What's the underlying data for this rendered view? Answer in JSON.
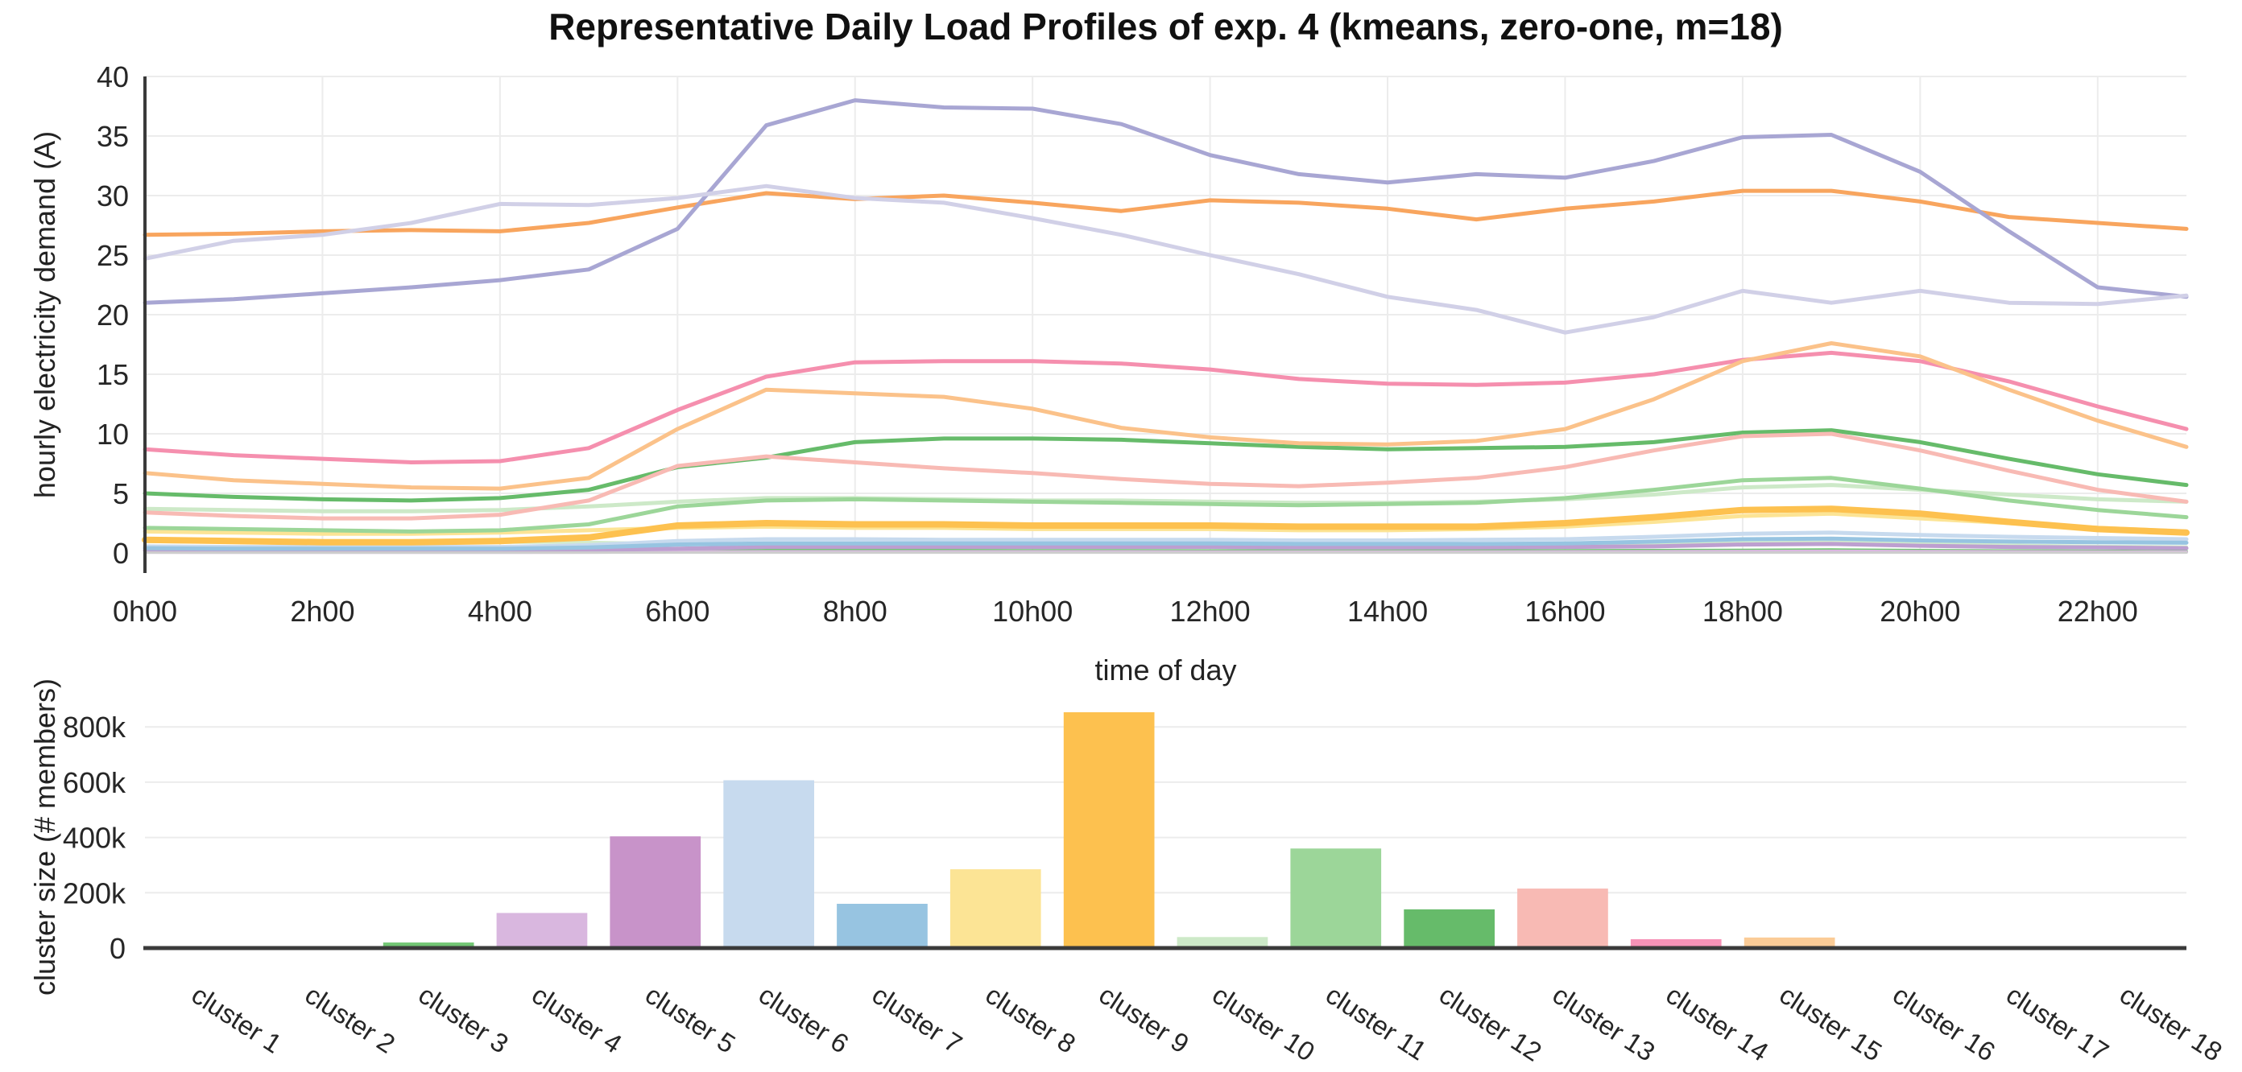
{
  "title": "Representative Daily Load Profiles of exp. 4 (kmeans, zero-one, m=18)",
  "chart_data": [
    {
      "type": "line",
      "xlabel": "time of day",
      "ylabel": "hourly electricity demand (A)",
      "x_hours": [
        0,
        1,
        2,
        3,
        4,
        5,
        6,
        7,
        8,
        9,
        10,
        11,
        12,
        13,
        14,
        15,
        16,
        17,
        18,
        19,
        20,
        21,
        22,
        23
      ],
      "xtick_hours": [
        0,
        2,
        4,
        6,
        8,
        10,
        12,
        14,
        16,
        18,
        20,
        22
      ],
      "xtick_labels": [
        "0h00",
        "2h00",
        "4h00",
        "6h00",
        "8h00",
        "10h00",
        "12h00",
        "14h00",
        "16h00",
        "18h00",
        "20h00",
        "22h00"
      ],
      "ytick_values": [
        0,
        5,
        10,
        15,
        20,
        25,
        30,
        35,
        40
      ],
      "ytick_labels": [
        "0",
        "5",
        "10",
        "15",
        "20",
        "25",
        "30",
        "35",
        "40"
      ],
      "ylim": [
        0,
        40
      ],
      "grid": true,
      "legend": "none",
      "series": [
        {
          "name": "cluster 1",
          "color": "#d2ebcd",
          "width": 4,
          "values": [
            0.95,
            0.9,
            0.9,
            0.85,
            0.9,
            0.9,
            0.75,
            0.6,
            0.55,
            0.55,
            0.5,
            0.5,
            0.5,
            0.5,
            0.5,
            0.55,
            0.6,
            0.7,
            0.85,
            0.9,
            0.8,
            0.65,
            0.55,
            0.5
          ]
        },
        {
          "name": "cluster 2",
          "color": "#f8a55e",
          "width": 5,
          "values": [
            26.7,
            26.8,
            27.0,
            27.1,
            27.0,
            27.7,
            29.0,
            30.2,
            29.7,
            30.0,
            29.4,
            28.7,
            29.6,
            29.4,
            28.9,
            28.0,
            28.9,
            29.5,
            30.4,
            30.4,
            29.5,
            28.2,
            27.7,
            27.2
          ]
        },
        {
          "name": "cluster 3",
          "color": "#6ec66e",
          "width": 4,
          "values": [
            0.12,
            0.1,
            0.1,
            0.1,
            0.1,
            0.12,
            0.15,
            0.2,
            0.2,
            0.2,
            0.18,
            0.18,
            0.17,
            0.16,
            0.16,
            0.17,
            0.18,
            0.2,
            0.22,
            0.25,
            0.2,
            0.17,
            0.14,
            0.12
          ]
        },
        {
          "name": "cluster 4",
          "color": "#d9b7df",
          "width": 4,
          "values": [
            0.06,
            0.05,
            0.05,
            0.05,
            0.05,
            0.06,
            0.08,
            0.1,
            0.1,
            0.1,
            0.1,
            0.1,
            0.09,
            0.09,
            0.09,
            0.09,
            0.1,
            0.11,
            0.13,
            0.14,
            0.12,
            0.1,
            0.08,
            0.07
          ]
        },
        {
          "name": "cluster 5",
          "color": "#bd9fd0",
          "width": 5,
          "values": [
            0.2,
            0.2,
            0.2,
            0.2,
            0.2,
            0.25,
            0.35,
            0.5,
            0.5,
            0.5,
            0.5,
            0.5,
            0.5,
            0.45,
            0.45,
            0.45,
            0.5,
            0.55,
            0.7,
            0.75,
            0.6,
            0.5,
            0.45,
            0.4
          ]
        },
        {
          "name": "cluster 6",
          "color": "#c7daee",
          "width": 5,
          "values": [
            0.55,
            0.5,
            0.5,
            0.5,
            0.5,
            0.65,
            1.0,
            1.15,
            1.15,
            1.1,
            1.1,
            1.1,
            1.1,
            1.05,
            1.05,
            1.1,
            1.15,
            1.35,
            1.6,
            1.7,
            1.5,
            1.35,
            1.25,
            1.15
          ]
        },
        {
          "name": "cluster 7",
          "color": "#97c4e1",
          "width": 5,
          "values": [
            0.4,
            0.35,
            0.35,
            0.35,
            0.35,
            0.45,
            0.7,
            0.8,
            0.8,
            0.8,
            0.8,
            0.8,
            0.8,
            0.75,
            0.75,
            0.75,
            0.8,
            0.95,
            1.15,
            1.2,
            1.05,
            0.95,
            0.9,
            0.85
          ]
        },
        {
          "name": "cluster 8",
          "color": "#fce495",
          "width": 5,
          "values": [
            1.8,
            1.7,
            1.6,
            1.6,
            1.7,
            1.9,
            2.1,
            2.2,
            2.1,
            2.1,
            2.0,
            2.0,
            2.0,
            1.9,
            1.9,
            2.0,
            2.2,
            2.6,
            3.1,
            3.3,
            2.9,
            2.5,
            2.1,
            1.8
          ]
        },
        {
          "name": "cluster 9",
          "color": "#fdc14f",
          "width": 8,
          "values": [
            1.1,
            1.0,
            0.9,
            0.9,
            1.0,
            1.3,
            2.3,
            2.5,
            2.4,
            2.4,
            2.3,
            2.3,
            2.3,
            2.2,
            2.2,
            2.2,
            2.5,
            3.0,
            3.6,
            3.7,
            3.3,
            2.6,
            2.0,
            1.7
          ]
        },
        {
          "name": "cluster 10",
          "color": "#cde9c8",
          "width": 5,
          "values": [
            3.7,
            3.6,
            3.5,
            3.5,
            3.6,
            3.9,
            4.3,
            4.6,
            4.6,
            4.5,
            4.4,
            4.4,
            4.3,
            4.2,
            4.2,
            4.3,
            4.5,
            4.9,
            5.5,
            5.7,
            5.3,
            4.9,
            4.5,
            4.3
          ]
        },
        {
          "name": "cluster 11",
          "color": "#9cd699",
          "width": 5,
          "values": [
            2.1,
            2.0,
            1.9,
            1.8,
            1.9,
            2.4,
            3.9,
            4.4,
            4.5,
            4.4,
            4.3,
            4.2,
            4.1,
            4.0,
            4.1,
            4.2,
            4.6,
            5.3,
            6.1,
            6.3,
            5.4,
            4.4,
            3.6,
            3.0
          ]
        },
        {
          "name": "cluster 12",
          "color": "#66bb6a",
          "width": 5,
          "values": [
            5.0,
            4.7,
            4.5,
            4.4,
            4.6,
            5.3,
            7.2,
            8.0,
            9.3,
            9.6,
            9.6,
            9.5,
            9.2,
            8.9,
            8.7,
            8.8,
            8.9,
            9.3,
            10.1,
            10.3,
            9.3,
            7.9,
            6.6,
            5.7
          ]
        },
        {
          "name": "cluster 13",
          "color": "#f8bab4",
          "width": 5,
          "values": [
            3.4,
            3.1,
            2.9,
            2.9,
            3.2,
            4.4,
            7.3,
            8.1,
            7.6,
            7.1,
            6.7,
            6.2,
            5.8,
            5.6,
            5.9,
            6.3,
            7.2,
            8.6,
            9.8,
            10.0,
            8.6,
            6.9,
            5.3,
            4.3
          ]
        },
        {
          "name": "cluster 14",
          "color": "#f58fae",
          "width": 5,
          "values": [
            8.7,
            8.2,
            7.9,
            7.6,
            7.7,
            8.8,
            12.0,
            14.8,
            16.0,
            16.1,
            16.1,
            15.9,
            15.4,
            14.6,
            14.2,
            14.1,
            14.3,
            15.0,
            16.2,
            16.8,
            16.1,
            14.4,
            12.3,
            10.4
          ]
        },
        {
          "name": "cluster 15",
          "color": "#fbc28a",
          "width": 5,
          "values": [
            6.7,
            6.1,
            5.8,
            5.5,
            5.4,
            6.3,
            10.4,
            13.7,
            13.4,
            13.1,
            12.1,
            10.5,
            9.7,
            9.2,
            9.1,
            9.4,
            10.4,
            12.9,
            16.1,
            17.6,
            16.5,
            13.7,
            11.1,
            8.9
          ]
        },
        {
          "name": "cluster 16",
          "color": "#a8a6d3",
          "width": 5,
          "values": [
            21.0,
            21.3,
            21.8,
            22.3,
            22.9,
            23.8,
            27.2,
            35.9,
            38.0,
            37.4,
            37.3,
            36.0,
            33.4,
            31.8,
            31.1,
            31.8,
            31.5,
            32.9,
            34.9,
            35.1,
            32.0,
            27.0,
            22.3,
            21.5
          ]
        },
        {
          "name": "cluster 17",
          "color": "#d1d0e7",
          "width": 5,
          "values": [
            24.7,
            26.2,
            26.7,
            27.7,
            29.3,
            29.2,
            29.8,
            30.8,
            29.8,
            29.4,
            28.1,
            26.7,
            25.0,
            23.4,
            21.5,
            20.4,
            18.5,
            19.8,
            22.0,
            21.0,
            22.0,
            21.0,
            20.9,
            21.6
          ]
        },
        {
          "name": "cluster 18",
          "color": "#cdcdcd",
          "width": 3,
          "values": [
            0.03,
            0.03,
            0.03,
            0.03,
            0.03,
            0.03,
            0.03,
            0.03,
            0.03,
            0.03,
            0.03,
            0.03,
            0.03,
            0.03,
            0.03,
            0.03,
            0.03,
            0.03,
            0.03,
            0.03,
            0.03,
            0.03,
            0.03,
            0.03
          ]
        }
      ]
    },
    {
      "type": "bar",
      "ylabel": "cluster size (# members)",
      "categories": [
        "cluster 1",
        "cluster 2",
        "cluster 3",
        "cluster 4",
        "cluster 5",
        "cluster 6",
        "cluster 7",
        "cluster 8",
        "cluster 9",
        "cluster 10",
        "cluster 11",
        "cluster 12",
        "cluster 13",
        "cluster 14",
        "cluster 15",
        "cluster 16",
        "cluster 17",
        "cluster 18"
      ],
      "values": [
        0,
        0,
        20000,
        127000,
        404000,
        607000,
        160000,
        285000,
        853000,
        40000,
        360000,
        140000,
        215000,
        32000,
        38000,
        0,
        0,
        0
      ],
      "colors": [
        "#d2ebcd",
        "#f8a55e",
        "#72c674",
        "#d9b7df",
        "#c893c9",
        "#c7daee",
        "#97c4e1",
        "#fce495",
        "#fdc14f",
        "#cde9c8",
        "#9cd699",
        "#66bb6a",
        "#f8bab4",
        "#f693b7",
        "#fbcc97",
        "#a8a6d3",
        "#d1d0e7",
        "#cdcdcd"
      ],
      "ytick_values": [
        0,
        200000,
        400000,
        600000,
        800000
      ],
      "ytick_labels": [
        "0",
        "200k",
        "400k",
        "600k",
        "800k"
      ],
      "ylim": [
        0,
        870000
      ],
      "grid": true,
      "legend": "none"
    }
  ]
}
